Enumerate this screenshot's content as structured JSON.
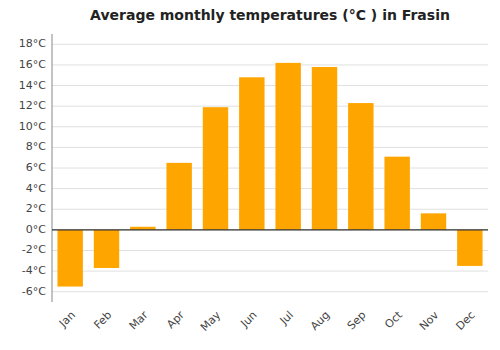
{
  "chart_data": {
    "type": "bar",
    "title": "Average monthly temperatures (°C ) in Frasin",
    "categories": [
      "Jan",
      "Feb",
      "Mar",
      "Apr",
      "May",
      "Jun",
      "Jul",
      "Aug",
      "Sep",
      "Oct",
      "Nov",
      "Dec"
    ],
    "values": [
      -5.5,
      -3.7,
      0.3,
      6.5,
      11.9,
      14.8,
      16.2,
      15.8,
      12.3,
      7.1,
      1.6,
      -3.5
    ],
    "color": "#FFA500",
    "ylim": [
      -7,
      19
    ],
    "yticks": [
      {
        "value": -6,
        "label": "-6°C"
      },
      {
        "value": -4,
        "label": "-4°C"
      },
      {
        "value": -2,
        "label": "-2°C"
      },
      {
        "value": 0,
        "label": "0°C"
      },
      {
        "value": 2,
        "label": "2°C"
      },
      {
        "value": 4,
        "label": "4°C"
      },
      {
        "value": 6,
        "label": "6°C"
      },
      {
        "value": 8,
        "label": "8°C"
      },
      {
        "value": 10,
        "label": "10°C"
      },
      {
        "value": 12,
        "label": "12°C"
      },
      {
        "value": 14,
        "label": "14°C"
      },
      {
        "value": 16,
        "label": "16°C"
      },
      {
        "value": 18,
        "label": "18°C"
      }
    ],
    "grid": true
  }
}
